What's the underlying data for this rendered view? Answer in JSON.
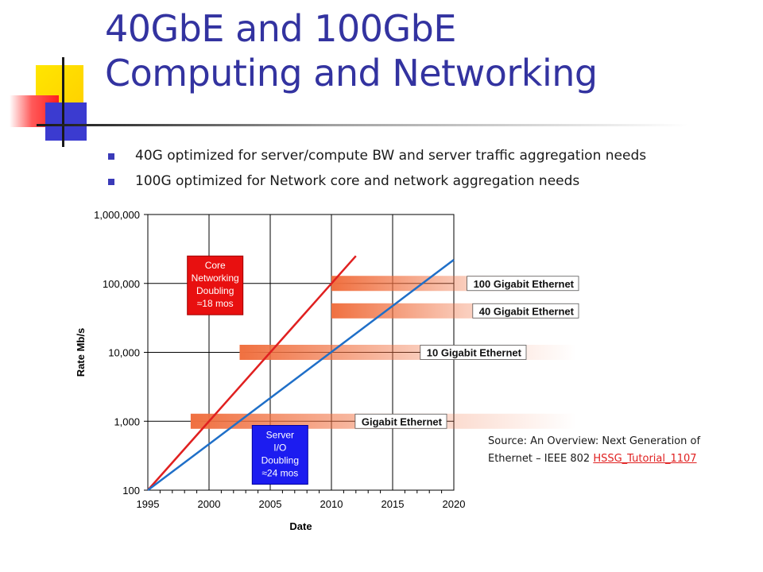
{
  "title": {
    "line1": "40GbE and 100GbE",
    "line2": "Computing and Networking"
  },
  "bullets": [
    "40G optimized for server/compute BW and server traffic aggregation needs",
    "100G optimized for Network core and network aggregation needs"
  ],
  "chart_data": {
    "type": "line",
    "xlabel": "Date",
    "ylabel": "Rate Mb/s",
    "xlim": [
      1995,
      2020
    ],
    "ylim": [
      100,
      1000000
    ],
    "y_scale": "log",
    "grid": true,
    "x_ticks": [
      "1995",
      "2000",
      "2005",
      "2010",
      "2015",
      "2020"
    ],
    "y_ticks": [
      {
        "value": 100,
        "label": "100"
      },
      {
        "value": 1000,
        "label": "1,000"
      },
      {
        "value": 10000,
        "label": "10,000"
      },
      {
        "value": 100000,
        "label": "100,000"
      },
      {
        "value": 1000000,
        "label": "1,000,000"
      }
    ],
    "series": [
      {
        "color": "#e02020",
        "x": [
          1995,
          2012
        ],
        "y": [
          100,
          250000
        ]
      },
      {
        "color": "#1f6fc8",
        "x": [
          1995,
          2020
        ],
        "y": [
          100,
          220000
        ]
      }
    ],
    "bands": [
      {
        "label": "100 Gigabit Ethernet",
        "rate": 100000,
        "x_start": 2010
      },
      {
        "label": "40 Gigabit Ethernet",
        "rate": 40000,
        "x_start": 2010
      },
      {
        "label": "10 Gigabit Ethernet",
        "rate": 10000,
        "x_start": 2002.5
      },
      {
        "label": "Gigabit Ethernet",
        "rate": 1000,
        "x_start": 1998.5
      }
    ],
    "annotations": [
      {
        "lines": [
          "Core",
          "Networking",
          "Doubling",
          "≈18 mos"
        ],
        "color": "#e81010",
        "border": "#a00000",
        "year": 2000.5,
        "rate_top": 250000
      },
      {
        "lines": [
          "Server",
          "I/O",
          "Doubling",
          "≈24 mos"
        ],
        "color": "#1c1cf0",
        "border": "#0000a0",
        "year": 2005.8,
        "rate_top": 870
      }
    ]
  },
  "source": {
    "text": "Source: An Overview: Next Generation of Ethernet – IEEE 802",
    "link": "HSSG_Tutorial_1107"
  },
  "colors": {
    "title": "#3333a0",
    "bullet": "#3a3ab8",
    "band_fill": "#f07040",
    "link": "#e02020"
  }
}
